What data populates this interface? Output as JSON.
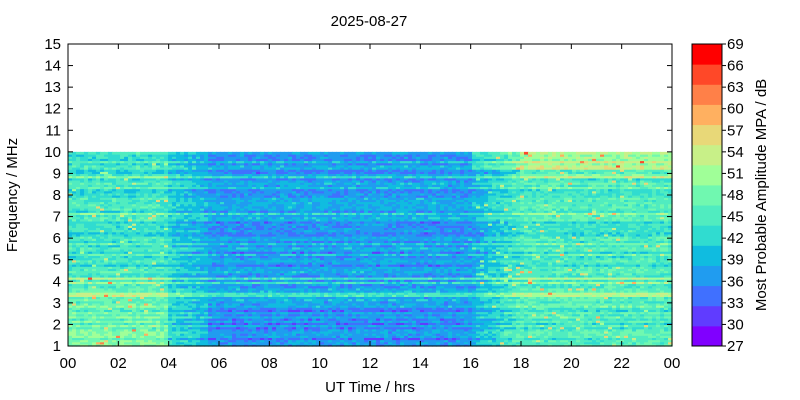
{
  "chart_data": {
    "type": "heatmap",
    "title": "2025-08-27",
    "xlabel": "UT Time / hrs",
    "ylabel": "Frequency / MHz",
    "colorbar_label": "Most Probable Amplitude MPA / dB",
    "xlim": [
      0,
      24
    ],
    "ylim": [
      1,
      15
    ],
    "x_ticks": [
      "00",
      "02",
      "04",
      "06",
      "08",
      "10",
      "12",
      "14",
      "16",
      "18",
      "20",
      "22",
      "00"
    ],
    "y_ticks": [
      "1",
      "2",
      "3",
      "4",
      "5",
      "6",
      "7",
      "8",
      "9",
      "10",
      "11",
      "12",
      "13",
      "14",
      "15"
    ],
    "data_freq_range": [
      1,
      10
    ],
    "colorbar_ticks": [
      "27",
      "30",
      "33",
      "36",
      "39",
      "42",
      "45",
      "48",
      "51",
      "54",
      "57",
      "60",
      "63",
      "66",
      "69"
    ],
    "colorbar_range": [
      27,
      69
    ],
    "colorbar_colors": [
      "#8000ff",
      "#603cff",
      "#4070ff",
      "#209cf0",
      "#10bce0",
      "#30dcd0",
      "#50ecc0",
      "#70f8b0",
      "#a0ff98",
      "#c8f088",
      "#e8d878",
      "#ffb060",
      "#ff8048",
      "#ff4828",
      "#ff0000"
    ],
    "mpa_profile_description": "Low amplitudes (~36-40 dB) 05-16 UT across 1-10 MHz; elevated amplitudes (~45-60 dB) 00-04 UT below 5 MHz and 18-24 UT across the band, with strong narrow-band lines near 9.3-9.7 MHz after 16 UT."
  }
}
